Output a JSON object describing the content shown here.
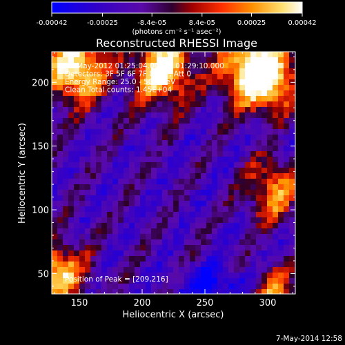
{
  "chart_data": {
    "type": "heatmap",
    "title": "Reconstructed RHESSI Image",
    "xlabel": "Heliocentric X (arcsec)",
    "ylabel": "Heliocentric Y (arcsec)",
    "xlim": [
      128,
      322
    ],
    "ylim": [
      34,
      224
    ],
    "xticks": [
      "150",
      "200",
      "250",
      "300"
    ],
    "xtick_values": [
      150,
      200,
      250,
      300
    ],
    "yticks": [
      "50",
      "100",
      "150",
      "200"
    ],
    "ytick_values": [
      50,
      100,
      150,
      200
    ],
    "colorbar": {
      "ticks": [
        "-0.00042",
        "-0.00025",
        "-8.4e-05",
        "8.4e-05",
        "0.00025",
        "0.00042"
      ],
      "tick_values": [
        -0.00042,
        -0.00025,
        -8.4e-05,
        8.4e-05,
        0.00025,
        0.00042
      ],
      "range": [
        -0.00042,
        0.00042
      ],
      "unit_label": "(photons cm⁻² s⁻¹ asec⁻²)",
      "colors": [
        "#0000ff",
        "#3a00c0",
        "#5a00b0",
        "#400050",
        "#c00000",
        "#ff5000",
        "#ff9a00",
        "#ffe080",
        "#ffffff"
      ]
    },
    "annotations": [
      "12-May-2012 01:25:04.000 to 01:29:10.000",
      "Detectors: 3F 5F 6F 7F 8F 9F, Att 0",
      "Energy Range: 25.0 - 50.0 keV",
      "Clean     Total counts: 1.45E+04"
    ],
    "peak_text": "Position of Peak = [209,216]",
    "grid": false
  },
  "footer": {
    "timestamp": "7-May-2014 12:58"
  }
}
